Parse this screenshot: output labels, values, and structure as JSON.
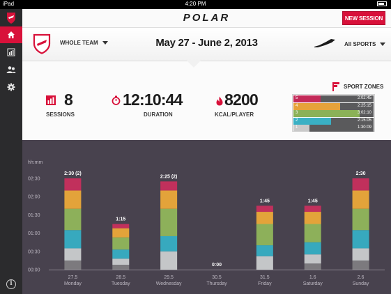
{
  "status_bar": {
    "device": "iPad",
    "time": "4:20 PM"
  },
  "header": {
    "brand": "POLAR",
    "new_session_label": "NEW SESSION"
  },
  "filters": {
    "team": "WHOLE TEAM",
    "date_range": "May 27 - June 2, 2013",
    "sport": "All SPORTS"
  },
  "stats": {
    "sessions": {
      "value": "8",
      "label": "SESSIONS"
    },
    "duration": {
      "value": "12:10:44",
      "label": "DURATION"
    },
    "kcal": {
      "value": "8200",
      "label": "KCAL/PLAYER"
    }
  },
  "sport_zones": {
    "title": "SPORT ZONES",
    "zones": [
      {
        "zone": "5",
        "time": "2:02:45",
        "fill_fraction": 0.34,
        "color": "#c32a59"
      },
      {
        "zone": "4",
        "time": "2:25:15",
        "fill_fraction": 0.58,
        "color": "#e6a23a"
      },
      {
        "zone": "3",
        "time": "3:02:10",
        "fill_fraction": 0.83,
        "color": "#8bb157"
      },
      {
        "zone": "2",
        "time": "2:15:05",
        "fill_fraction": 0.47,
        "color": "#3ab0c4"
      },
      {
        "zone": "1",
        "time": "1:30:09",
        "fill_fraction": 0.2,
        "color": "#c9c9c9"
      }
    ]
  },
  "colors": {
    "accent": "#d8113a",
    "chart_bg": "#48424e"
  },
  "icons": {
    "sidebar": [
      "polar-shield-icon",
      "home-icon",
      "bar-chart-icon",
      "team-icon",
      "gear-icon",
      "info-icon"
    ],
    "stats": [
      "bar-chart-icon",
      "stopwatch-icon",
      "flame-icon"
    ],
    "filters": [
      "team-shield-icon",
      "running-shoe-icon",
      "flag-icon"
    ]
  },
  "chart_data": {
    "type": "bar",
    "ylabel": "hh:mm",
    "y_ticks": [
      "00:00",
      "00:30",
      "01:00",
      "01:30",
      "02:00",
      "02:30"
    ],
    "ylim": [
      0,
      150
    ],
    "grid": false,
    "categories": [
      {
        "date": "27.5",
        "day": "Monday",
        "label": "2:30 (2)"
      },
      {
        "date": "28.5",
        "day": "Tuesday",
        "label": "1:15"
      },
      {
        "date": "29.5",
        "day": "Wednesday",
        "label": "2:25 (2)"
      },
      {
        "date": "30.5",
        "day": "Thursday",
        "label": "0:00"
      },
      {
        "date": "31.5",
        "day": "Friday",
        "label": "1:45"
      },
      {
        "date": "1.6",
        "day": "Saturday",
        "label": "1:45"
      },
      {
        "date": "2.6",
        "day": "Sunday",
        "label": "2:30"
      }
    ],
    "zone_colors": [
      "#7c7a7e",
      "#c4c6c8",
      "#37a9be",
      "#8db05a",
      "#e3a33a",
      "#c1305c"
    ],
    "series_note_units": "minutes per zone, bottom to top",
    "stacks": [
      [
        15,
        20,
        30,
        35,
        30,
        20
      ],
      [
        8,
        10,
        15,
        20,
        15,
        7
      ],
      [
        0,
        30,
        25,
        45,
        30,
        15
      ],
      [
        0,
        0,
        0,
        0,
        0,
        0
      ],
      [
        0,
        22,
        18,
        35,
        20,
        10
      ],
      [
        10,
        15,
        20,
        30,
        20,
        10
      ],
      [
        15,
        20,
        30,
        35,
        30,
        20
      ]
    ]
  }
}
